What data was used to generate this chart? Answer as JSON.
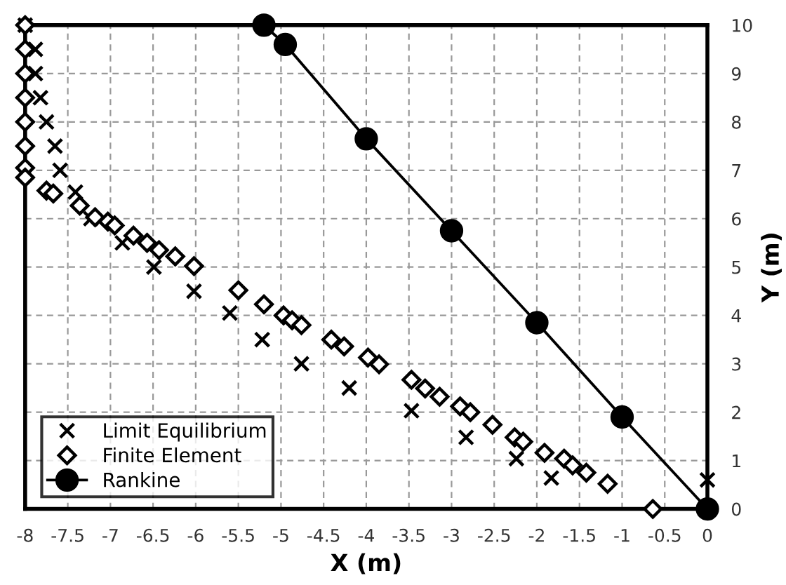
{
  "chart_data": {
    "type": "scatter",
    "xlabel": "X (m)",
    "ylabel": "Y (m)",
    "xlim": [
      -8,
      0
    ],
    "ylim": [
      0,
      10
    ],
    "xticks": [
      -8,
      -7.5,
      -7,
      -6.5,
      -6,
      -5.5,
      -5,
      -4.5,
      -4,
      -3.5,
      -3,
      -2.5,
      -2,
      -1.5,
      -1,
      -0.5,
      0
    ],
    "yticks": [
      0,
      1,
      2,
      3,
      4,
      5,
      6,
      7,
      8,
      9,
      10
    ],
    "grid": true,
    "legend": "bottom left",
    "series": [
      {
        "name": "Limit Equilibrium",
        "marker": "cross",
        "color": "#000000",
        "x": [
          -8,
          -7.88,
          -7.88,
          -7.82,
          -7.75,
          -7.65,
          -7.59,
          -7.41,
          -7.23,
          -6.86,
          -6.49,
          -6.02,
          -5.6,
          -5.22,
          -4.76,
          -4.2,
          -3.47,
          -2.83,
          -2.24,
          -1.83,
          0
        ],
        "values": [
          10,
          9.5,
          9.0,
          8.5,
          8.0,
          7.5,
          7.0,
          6.55,
          6.0,
          5.5,
          5.0,
          4.5,
          4.05,
          3.5,
          3.0,
          2.5,
          2.03,
          1.48,
          1.04,
          0.64,
          0.6
        ]
      },
      {
        "name": "Finite Element",
        "marker": "diamond",
        "color": "#000000",
        "x": [
          -8,
          -8,
          -8,
          -8,
          -8,
          -8,
          -8,
          -8,
          -7.75,
          -7.67,
          -7.36,
          -7.18,
          -7.03,
          -6.95,
          -6.73,
          -6.57,
          -6.43,
          -6.24,
          -6.02,
          -5.5,
          -5.2,
          -4.97,
          -4.87,
          -4.76,
          -4.41,
          -4.26,
          -3.98,
          -3.85,
          -3.47,
          -3.31,
          -3.14,
          -2.9,
          -2.78,
          -2.52,
          -2.26,
          -2.16,
          -1.91,
          -1.68,
          -1.58,
          -1.42,
          -1.17,
          -0.64,
          0
        ],
        "values": [
          10,
          9.5,
          9.0,
          8.5,
          8.0,
          7.5,
          7.05,
          6.85,
          6.58,
          6.52,
          6.27,
          6.03,
          5.94,
          5.86,
          5.65,
          5.5,
          5.35,
          5.22,
          5.02,
          4.52,
          4.23,
          4.0,
          3.9,
          3.8,
          3.5,
          3.36,
          3.13,
          2.99,
          2.67,
          2.49,
          2.32,
          2.12,
          2.0,
          1.74,
          1.48,
          1.39,
          1.16,
          1.04,
          0.9,
          0.75,
          0.52,
          0,
          0
        ]
      },
      {
        "name": "Rankine",
        "type": "line",
        "marker": "circle",
        "line_style": "solid",
        "color": "#000000",
        "x": [
          -5.2,
          -4.95,
          -4,
          -3,
          -2,
          -1,
          0
        ],
        "values": [
          10,
          9.6,
          7.65,
          5.75,
          3.85,
          1.9,
          0
        ]
      }
    ]
  }
}
